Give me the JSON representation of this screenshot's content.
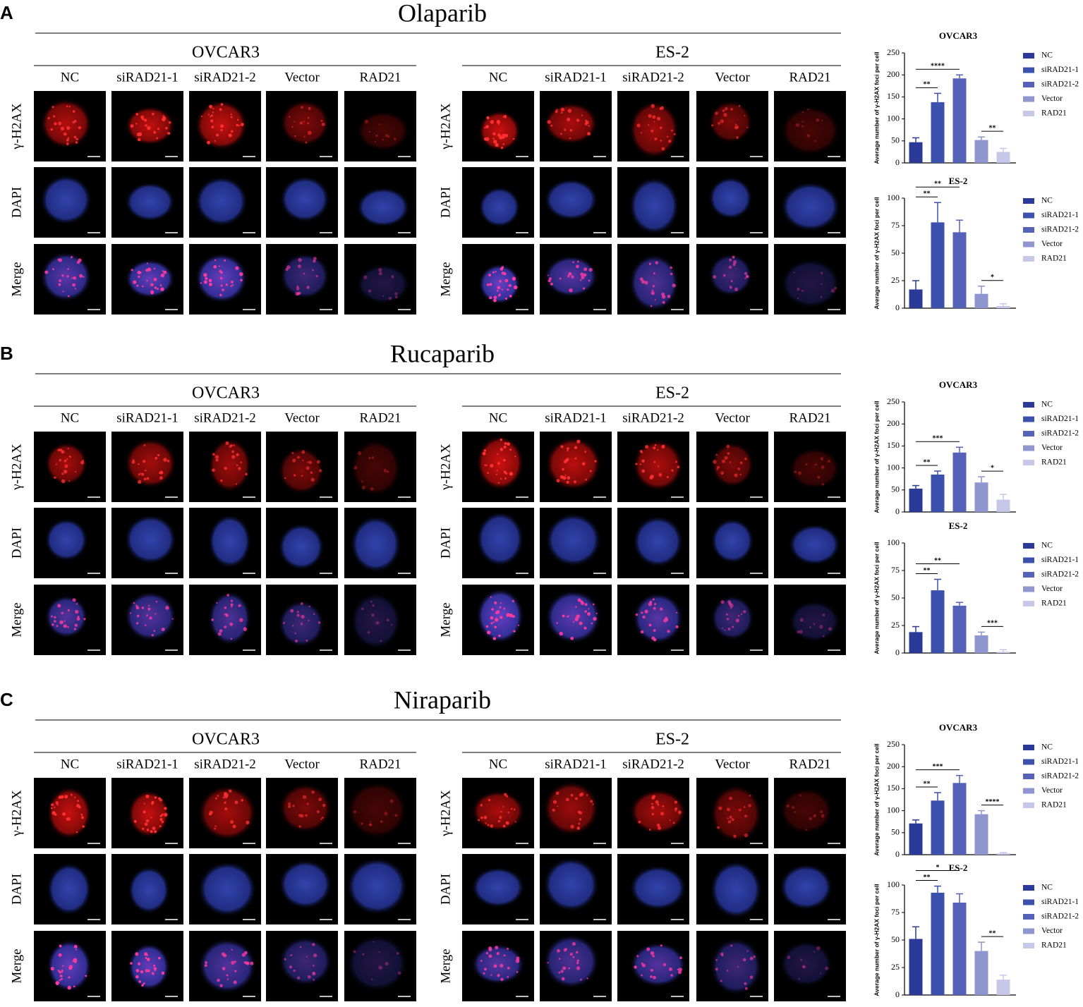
{
  "panels": [
    {
      "letter": "A",
      "drug": "Olaparib",
      "lines": [
        {
          "name": "OVCAR3",
          "columns": [
            "NC",
            "siRAD21-1",
            "siRAD21-2",
            "Vector",
            "RAD21"
          ],
          "rows": [
            "γ-H2AX",
            "DAPI",
            "Merge"
          ]
        },
        {
          "name": "ES-2",
          "columns": [
            "NC",
            "siRAD21-1",
            "siRAD21-2",
            "Vector",
            "RAD21"
          ],
          "rows": [
            "γ-H2AX",
            "DAPI",
            "Merge"
          ]
        }
      ]
    },
    {
      "letter": "B",
      "drug": "Rucaparib",
      "lines": [
        {
          "name": "OVCAR3",
          "columns": [
            "NC",
            "siRAD21-1",
            "siRAD21-2",
            "Vector",
            "RAD21"
          ],
          "rows": [
            "γ-H2AX",
            "DAPI",
            "Merge"
          ]
        },
        {
          "name": "ES-2",
          "columns": [
            "NC",
            "siRAD21-1",
            "siRAD21-2",
            "Vector",
            "RAD21"
          ],
          "rows": [
            "γ-H2AX",
            "DAPI",
            "Merge"
          ]
        }
      ]
    },
    {
      "letter": "C",
      "drug": "Niraparib",
      "lines": [
        {
          "name": "OVCAR3",
          "columns": [
            "NC",
            "siRAD21-1",
            "siRAD21-2",
            "Vector",
            "RAD21"
          ],
          "rows": [
            "γ-H2AX",
            "DAPI",
            "Merge"
          ]
        },
        {
          "name": "ES-2",
          "columns": [
            "NC",
            "siRAD21-1",
            "siRAD21-2",
            "Vector",
            "RAD21"
          ],
          "rows": [
            "γ-H2AX",
            "DAPI",
            "Merge"
          ]
        }
      ]
    }
  ],
  "chart_data": [
    {
      "type": "bar",
      "title": "OVCAR3",
      "y_label": "Average number of γ-H2AX foci per cell",
      "ylim": [
        0,
        250
      ],
      "yticks": [
        0,
        50,
        100,
        150,
        200,
        250
      ],
      "series": [
        {
          "name": "NC",
          "color": "#2b3a97",
          "values": [
            47
          ],
          "errors": [
            10
          ]
        },
        {
          "name": "siRAD21-1",
          "color": "#3c50ad",
          "values": [
            138
          ],
          "errors": [
            20
          ]
        },
        {
          "name": "siRAD21-2",
          "color": "#5661b8",
          "values": [
            192
          ],
          "errors": [
            8
          ]
        },
        {
          "name": "Vector",
          "color": "#8f95cf",
          "values": [
            52
          ],
          "errors": [
            7
          ]
        },
        {
          "name": "RAD21",
          "color": "#c5c8e8",
          "values": [
            25
          ],
          "errors": [
            8
          ]
        }
      ],
      "significance": [
        {
          "label": "**",
          "pair": [
            0,
            1
          ]
        },
        {
          "label": "****",
          "pair": [
            0,
            2
          ]
        },
        {
          "label": "**",
          "pair": [
            3,
            4
          ]
        }
      ]
    },
    {
      "type": "bar",
      "title": "ES-2",
      "y_label": "Average number of γ-H2AX foci per cell",
      "ylim": [
        0,
        100
      ],
      "yticks": [
        0,
        25,
        50,
        75,
        100
      ],
      "series": [
        {
          "name": "NC",
          "color": "#2b3a97",
          "values": [
            17
          ],
          "errors": [
            8
          ]
        },
        {
          "name": "siRAD21-1",
          "color": "#3c50ad",
          "values": [
            78
          ],
          "errors": [
            18
          ]
        },
        {
          "name": "siRAD21-2",
          "color": "#5661b8",
          "values": [
            69
          ],
          "errors": [
            11
          ]
        },
        {
          "name": "Vector",
          "color": "#8f95cf",
          "values": [
            13
          ],
          "errors": [
            7
          ]
        },
        {
          "name": "RAD21",
          "color": "#c5c8e8",
          "values": [
            2
          ],
          "errors": [
            2
          ]
        }
      ],
      "significance": [
        {
          "label": "**",
          "pair": [
            0,
            1
          ]
        },
        {
          "label": "**",
          "pair": [
            0,
            2
          ]
        },
        {
          "label": "*",
          "pair": [
            3,
            4
          ]
        }
      ]
    },
    {
      "type": "bar",
      "title": "OVCAR3",
      "y_label": "Average number of γ-H2AX foci per cell",
      "ylim": [
        0,
        250
      ],
      "yticks": [
        0,
        50,
        100,
        150,
        200,
        250
      ],
      "series": [
        {
          "name": "NC",
          "color": "#2b3a97",
          "values": [
            53
          ],
          "errors": [
            7
          ]
        },
        {
          "name": "siRAD21-1",
          "color": "#3c50ad",
          "values": [
            85
          ],
          "errors": [
            8
          ]
        },
        {
          "name": "siRAD21-2",
          "color": "#5661b8",
          "values": [
            135
          ],
          "errors": [
            12
          ]
        },
        {
          "name": "Vector",
          "color": "#8f95cf",
          "values": [
            67
          ],
          "errors": [
            13
          ]
        },
        {
          "name": "RAD21",
          "color": "#c5c8e8",
          "values": [
            28
          ],
          "errors": [
            12
          ]
        }
      ],
      "significance": [
        {
          "label": "**",
          "pair": [
            0,
            1
          ]
        },
        {
          "label": "***",
          "pair": [
            0,
            2
          ]
        },
        {
          "label": "*",
          "pair": [
            3,
            4
          ]
        }
      ]
    },
    {
      "type": "bar",
      "title": "ES-2",
      "y_label": "Average number of γ-H2AX foci per cell",
      "ylim": [
        0,
        100
      ],
      "yticks": [
        0,
        25,
        50,
        75,
        100
      ],
      "series": [
        {
          "name": "NC",
          "color": "#2b3a97",
          "values": [
            19
          ],
          "errors": [
            5
          ]
        },
        {
          "name": "siRAD21-1",
          "color": "#3c50ad",
          "values": [
            57
          ],
          "errors": [
            10
          ]
        },
        {
          "name": "siRAD21-2",
          "color": "#5661b8",
          "values": [
            43
          ],
          "errors": [
            3
          ]
        },
        {
          "name": "Vector",
          "color": "#8f95cf",
          "values": [
            16
          ],
          "errors": [
            3
          ]
        },
        {
          "name": "RAD21",
          "color": "#c5c8e8",
          "values": [
            1
          ],
          "errors": [
            2
          ]
        }
      ],
      "significance": [
        {
          "label": "**",
          "pair": [
            0,
            1
          ]
        },
        {
          "label": "**",
          "pair": [
            0,
            2
          ]
        },
        {
          "label": "***",
          "pair": [
            3,
            4
          ]
        }
      ]
    },
    {
      "type": "bar",
      "title": "OVCAR3",
      "y_label": "Average number of γ-H2AX foci per cell",
      "ylim": [
        0,
        250
      ],
      "yticks": [
        0,
        50,
        100,
        150,
        200,
        250
      ],
      "series": [
        {
          "name": "NC",
          "color": "#2b3a97",
          "values": [
            71
          ],
          "errors": [
            8
          ]
        },
        {
          "name": "siRAD21-1",
          "color": "#3c50ad",
          "values": [
            123
          ],
          "errors": [
            18
          ]
        },
        {
          "name": "siRAD21-2",
          "color": "#5661b8",
          "values": [
            163
          ],
          "errors": [
            17
          ]
        },
        {
          "name": "Vector",
          "color": "#8f95cf",
          "values": [
            92
          ],
          "errors": [
            8
          ]
        },
        {
          "name": "RAD21",
          "color": "#c5c8e8",
          "values": [
            3
          ],
          "errors": [
            2
          ]
        }
      ],
      "significance": [
        {
          "label": "**",
          "pair": [
            0,
            1
          ]
        },
        {
          "label": "***",
          "pair": [
            0,
            2
          ]
        },
        {
          "label": "****",
          "pair": [
            3,
            4
          ]
        }
      ]
    },
    {
      "type": "bar",
      "title": "ES-2",
      "y_label": "Average number of γ-H2AX foci per cell",
      "ylim": [
        0,
        100
      ],
      "yticks": [
        0,
        25,
        50,
        75,
        100
      ],
      "series": [
        {
          "name": "NC",
          "color": "#2b3a97",
          "values": [
            51
          ],
          "errors": [
            11
          ]
        },
        {
          "name": "siRAD21-1",
          "color": "#3c50ad",
          "values": [
            93
          ],
          "errors": [
            6
          ]
        },
        {
          "name": "siRAD21-2",
          "color": "#5661b8",
          "values": [
            84
          ],
          "errors": [
            8
          ]
        },
        {
          "name": "Vector",
          "color": "#8f95cf",
          "values": [
            40
          ],
          "errors": [
            8
          ]
        },
        {
          "name": "RAD21",
          "color": "#c5c8e8",
          "values": [
            14
          ],
          "errors": [
            4
          ]
        }
      ],
      "significance": [
        {
          "label": "**",
          "pair": [
            0,
            1
          ]
        },
        {
          "label": "*",
          "pair": [
            0,
            2
          ]
        },
        {
          "label": "**",
          "pair": [
            3,
            4
          ]
        }
      ]
    }
  ]
}
